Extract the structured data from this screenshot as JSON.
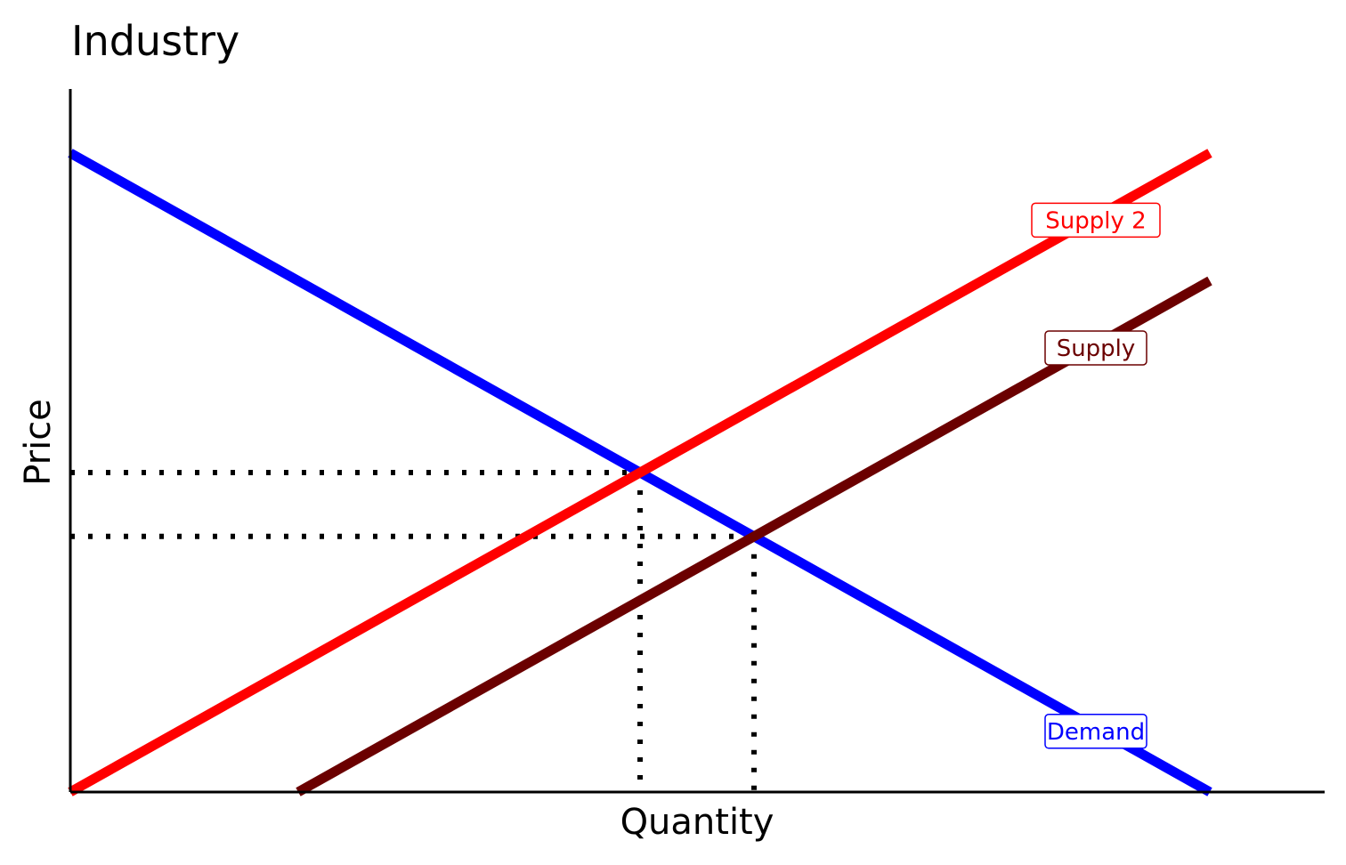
{
  "chart_data": {
    "type": "line",
    "title": "Industry",
    "xlabel": "Quantity",
    "ylabel": "Price",
    "xlim": [
      0,
      11
    ],
    "ylim": [
      0,
      11
    ],
    "tick_labels": "none",
    "grid": false,
    "series": [
      {
        "name": "Demand",
        "color": "#0000ff",
        "x": [
          0,
          10
        ],
        "y": [
          10,
          0
        ]
      },
      {
        "name": "Supply 2",
        "color": "#ff0000",
        "x": [
          0,
          10
        ],
        "y": [
          0,
          10
        ]
      },
      {
        "name": "Supply",
        "color": "#6b0000",
        "x": [
          2,
          10
        ],
        "y": [
          0,
          8
        ]
      }
    ],
    "reference_lines": [
      {
        "style": "dotted",
        "color": "#000000",
        "from": [
          0,
          5
        ],
        "to": [
          5,
          5
        ]
      },
      {
        "style": "dotted",
        "color": "#000000",
        "from": [
          5,
          5
        ],
        "to": [
          5,
          0
        ]
      },
      {
        "style": "dotted",
        "color": "#000000",
        "from": [
          0,
          4
        ],
        "to": [
          6,
          4
        ]
      },
      {
        "style": "dotted",
        "color": "#000000",
        "from": [
          6,
          4
        ],
        "to": [
          6,
          0
        ]
      }
    ],
    "labels": [
      {
        "text": "Supply 2",
        "x": 9.0,
        "y": 8.95,
        "color": "#ff0000"
      },
      {
        "text": "Supply",
        "x": 9.0,
        "y": 6.95,
        "color": "#6b0000"
      },
      {
        "text": "Demand",
        "x": 9.0,
        "y": 0.95,
        "color": "#0000ff"
      }
    ]
  }
}
